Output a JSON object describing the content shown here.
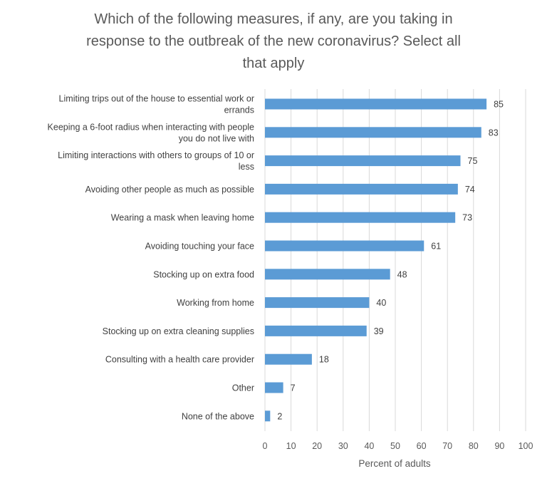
{
  "chart_data": {
    "type": "bar",
    "orientation": "horizontal",
    "title_lines": [
      "Which of the following measures, if any, are you taking in",
      "response to the outbreak of the new coronavirus? Select all",
      "that apply"
    ],
    "xlabel": "Percent of adults",
    "ylabel": "",
    "xlim": [
      0,
      100
    ],
    "xticks": [
      0,
      10,
      20,
      30,
      40,
      50,
      60,
      70,
      80,
      90,
      100
    ],
    "grid": true,
    "bar_color": "#5b9bd5",
    "categories": [
      [
        "Limiting trips out of the house to essential work or",
        "errands"
      ],
      [
        "Keeping a 6-foot radius when interacting with people",
        "you do not live with"
      ],
      [
        "Limiting interactions with others to groups of 10 or",
        "less"
      ],
      [
        "Avoiding other people as much as possible"
      ],
      [
        "Wearing a mask when leaving home"
      ],
      [
        "Avoiding touching your face"
      ],
      [
        "Stocking up on extra food"
      ],
      [
        "Working from home"
      ],
      [
        "Stocking up on extra cleaning supplies"
      ],
      [
        "Consulting with a health care provider"
      ],
      [
        "Other"
      ],
      [
        "None of the above"
      ]
    ],
    "values": [
      85,
      83,
      75,
      74,
      73,
      61,
      48,
      40,
      39,
      18,
      7,
      2
    ]
  }
}
